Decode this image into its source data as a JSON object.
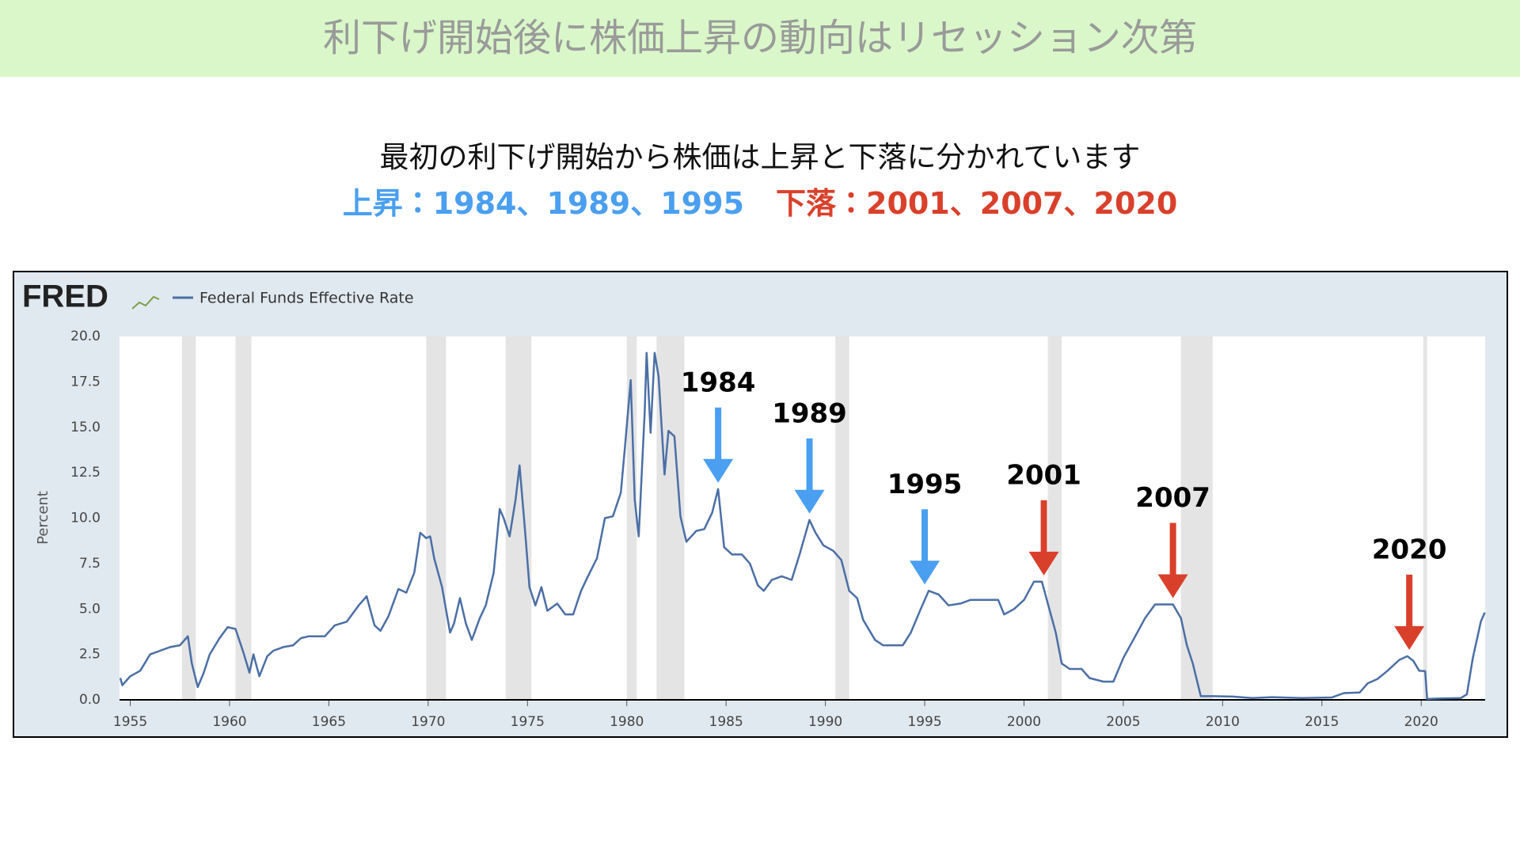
{
  "header": {
    "title": "利下げ開始後に株価上昇の動向はリセッション次第",
    "line1": "最初の利下げ開始から株価は上昇と下落に分かれています",
    "rise": "上昇：1984、1989、1995",
    "fall": "下落：2001、2007、2020"
  },
  "chart_data": {
    "type": "line",
    "source": "FRED",
    "ylabel": "Percent",
    "xlim": [
      1954.46,
      2023.22
    ],
    "ylim": [
      0,
      20
    ],
    "xticks": [
      1955,
      1960,
      1965,
      1970,
      1975,
      1980,
      1985,
      1990,
      1995,
      2000,
      2005,
      2010,
      2015,
      2020
    ],
    "yticks": [
      {
        "value": 0,
        "label": "0.0"
      },
      2.5,
      {
        "value": 5,
        "label": "5.0"
      },
      7.5,
      {
        "value": 10,
        "label": "10.0"
      },
      12.5,
      {
        "value": 15,
        "label": "15.0"
      },
      17.5,
      {
        "value": 20,
        "label": "20.0"
      }
    ],
    "grid": false,
    "recessions": [
      [
        1957.6,
        1958.3
      ],
      [
        1960.3,
        1961.1
      ],
      [
        1969.9,
        1970.9
      ],
      [
        1973.9,
        1975.2
      ],
      [
        1980.0,
        1980.5
      ],
      [
        1981.5,
        1982.9
      ],
      [
        1990.5,
        1991.2
      ],
      [
        2001.2,
        2001.9
      ],
      [
        2007.9,
        2009.5
      ],
      [
        2020.1,
        2020.3
      ]
    ],
    "x": [
      1954.5,
      1954.6,
      1955,
      1955.5,
      1956,
      1956.5,
      1957,
      1957.5,
      1957.9,
      1958.1,
      1958.4,
      1958.7,
      1959,
      1959.5,
      1959.9,
      1960.3,
      1960.7,
      1961,
      1961.2,
      1961.5,
      1961.9,
      1962.2,
      1962.7,
      1963.2,
      1963.6,
      1964,
      1964.8,
      1965.3,
      1965.9,
      1966.5,
      1966.9,
      1967.3,
      1967.6,
      1968,
      1968.5,
      1968.9,
      1969.3,
      1969.6,
      1969.9,
      1970.1,
      1970.3,
      1970.7,
      1971.1,
      1971.3,
      1971.6,
      1971.9,
      1972.2,
      1972.6,
      1972.9,
      1973.3,
      1973.6,
      1973.8,
      1974.1,
      1974.4,
      1974.6,
      1974.9,
      1975.1,
      1975.4,
      1975.7,
      1976,
      1976.5,
      1976.9,
      1977.3,
      1977.7,
      1978,
      1978.5,
      1978.9,
      1979.3,
      1979.7,
      1979.9,
      1980.2,
      1980.4,
      1980.6,
      1980.9,
      1981,
      1981.2,
      1981.4,
      1981.6,
      1981.9,
      1982.1,
      1982.4,
      1982.7,
      1983,
      1983.5,
      1983.9,
      1984.3,
      1984.6,
      1984.9,
      1985.3,
      1985.8,
      1986.2,
      1986.6,
      1986.9,
      1987.3,
      1987.8,
      1988.3,
      1988.7,
      1989.2,
      1989.5,
      1989.9,
      1990.4,
      1990.8,
      1991.2,
      1991.6,
      1991.9,
      1992.5,
      1992.9,
      1993.5,
      1993.9,
      1994.3,
      1994.8,
      1995.2,
      1995.7,
      1996.2,
      1996.8,
      1997.3,
      1998,
      1998.7,
      1999,
      1999.5,
      2000,
      2000.5,
      2000.9,
      2001.2,
      2001.6,
      2001.9,
      2002.3,
      2002.9,
      2003.3,
      2004,
      2004.5,
      2005,
      2005.6,
      2006.1,
      2006.6,
      2007.5,
      2007.9,
      2008.2,
      2008.5,
      2008.9,
      2009.5,
      2010.5,
      2011.5,
      2012.5,
      2014,
      2015.5,
      2016.1,
      2016.9,
      2017.3,
      2017.8,
      2018.3,
      2018.9,
      2019.3,
      2019.6,
      2019.9,
      2020.2,
      2020.3,
      2021,
      2022,
      2022.3,
      2022.6,
      2022.9,
      2023,
      2023.2
    ],
    "series": [
      {
        "name": "Federal Funds Effective Rate",
        "color": "#4b6fa5",
        "values": [
          1.2,
          0.8,
          1.3,
          1.6,
          2.5,
          2.7,
          2.9,
          3.0,
          3.5,
          2.0,
          0.7,
          1.5,
          2.5,
          3.4,
          4.0,
          3.9,
          2.6,
          1.5,
          2.5,
          1.3,
          2.4,
          2.7,
          2.9,
          3.0,
          3.4,
          3.5,
          3.5,
          4.1,
          4.3,
          5.2,
          5.7,
          4.1,
          3.8,
          4.6,
          6.1,
          5.9,
          7.0,
          9.2,
          8.9,
          9.0,
          7.8,
          6.2,
          3.7,
          4.2,
          5.6,
          4.2,
          3.3,
          4.5,
          5.2,
          7.0,
          10.5,
          10.0,
          9.0,
          11.0,
          12.9,
          9.0,
          6.2,
          5.2,
          6.2,
          4.9,
          5.3,
          4.7,
          4.7,
          6.0,
          6.7,
          7.8,
          10.0,
          10.1,
          11.4,
          13.8,
          17.6,
          11.0,
          9.0,
          15.8,
          19.1,
          14.7,
          19.1,
          17.8,
          12.4,
          14.8,
          14.5,
          10.1,
          8.7,
          9.3,
          9.4,
          10.3,
          11.6,
          8.4,
          8.0,
          8.0,
          7.5,
          6.3,
          6.0,
          6.6,
          6.8,
          6.6,
          8.0,
          9.9,
          9.2,
          8.5,
          8.2,
          7.7,
          6.0,
          5.6,
          4.4,
          3.3,
          3.0,
          3.0,
          3.0,
          3.7,
          5.0,
          6.0,
          5.8,
          5.2,
          5.3,
          5.5,
          5.5,
          5.5,
          4.7,
          5.0,
          5.5,
          6.5,
          6.5,
          5.3,
          3.7,
          2.0,
          1.7,
          1.7,
          1.2,
          1.0,
          1.0,
          2.3,
          3.5,
          4.5,
          5.25,
          5.25,
          4.5,
          3.0,
          2.0,
          0.2,
          0.2,
          0.18,
          0.1,
          0.15,
          0.1,
          0.13,
          0.37,
          0.4,
          0.9,
          1.15,
          1.6,
          2.2,
          2.4,
          2.15,
          1.6,
          1.58,
          0.05,
          0.08,
          0.1,
          0.3,
          2.3,
          3.8,
          4.3,
          4.8
        ]
      }
    ],
    "annotations": [
      {
        "label": "1984",
        "x": 1984.6,
        "y": 11.6,
        "color": "#4a9ff0"
      },
      {
        "label": "1989",
        "x": 1989.2,
        "y": 9.9,
        "color": "#4a9ff0"
      },
      {
        "label": "1995",
        "x": 1995.0,
        "y": 6.0,
        "color": "#4a9ff0"
      },
      {
        "label": "2001",
        "x": 2001.0,
        "y": 6.5,
        "color": "#d9402b"
      },
      {
        "label": "2007",
        "x": 2007.5,
        "y": 5.25,
        "color": "#d9402b"
      },
      {
        "label": "2020",
        "x": 2019.4,
        "y": 2.4,
        "color": "#d9402b"
      }
    ]
  }
}
